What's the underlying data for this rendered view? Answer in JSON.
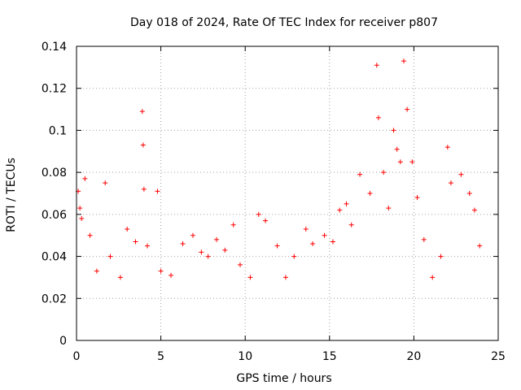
{
  "chart_data": {
    "type": "scatter",
    "title": "Day 018 of 2024, Rate Of TEC Index for receiver p807",
    "xlabel": "GPS time / hours",
    "ylabel": "ROTI / TECUs",
    "xlim": [
      0,
      25
    ],
    "ylim": [
      0,
      0.14
    ],
    "x_ticks": [
      "0",
      "5",
      "10",
      "15",
      "20",
      "25"
    ],
    "y_ticks": [
      "0",
      "0.02",
      "0.04",
      "0.06",
      "0.08",
      "0.1",
      "0.12",
      "0.14"
    ],
    "grid": true,
    "marker": "+",
    "color": "#ff0000",
    "series": [
      {
        "x": [
          0.1,
          0.2,
          0.3,
          0.5,
          0.8,
          1.2,
          1.7,
          2.0,
          2.6,
          3.0,
          3.5,
          3.9,
          3.95,
          4.0,
          4.2,
          4.8,
          5.0,
          5.6,
          6.3,
          6.9,
          7.4,
          7.8,
          8.3,
          8.8,
          9.3,
          9.7,
          10.3,
          10.8,
          11.2,
          11.9,
          12.4,
          12.9,
          13.6,
          14.0,
          14.7,
          15.2,
          15.6,
          16.0,
          16.3,
          16.8,
          17.4,
          17.8,
          17.9,
          18.2,
          18.5,
          18.8,
          19.0,
          19.2,
          19.4,
          19.6,
          19.9,
          20.2,
          20.6,
          21.1,
          21.6,
          22.0,
          22.2,
          22.8,
          23.3,
          23.6,
          23.9
        ],
        "y": [
          0.071,
          0.063,
          0.058,
          0.077,
          0.05,
          0.033,
          0.075,
          0.04,
          0.03,
          0.053,
          0.047,
          0.109,
          0.093,
          0.072,
          0.045,
          0.071,
          0.033,
          0.031,
          0.046,
          0.05,
          0.042,
          0.04,
          0.048,
          0.043,
          0.055,
          0.036,
          0.03,
          0.06,
          0.057,
          0.045,
          0.03,
          0.04,
          0.053,
          0.046,
          0.05,
          0.047,
          0.062,
          0.065,
          0.055,
          0.079,
          0.07,
          0.131,
          0.106,
          0.08,
          0.063,
          0.1,
          0.091,
          0.085,
          0.133,
          0.11,
          0.085,
          0.068,
          0.048,
          0.03,
          0.04,
          0.092,
          0.075,
          0.079,
          0.07,
          0.062,
          0.045
        ]
      }
    ]
  }
}
